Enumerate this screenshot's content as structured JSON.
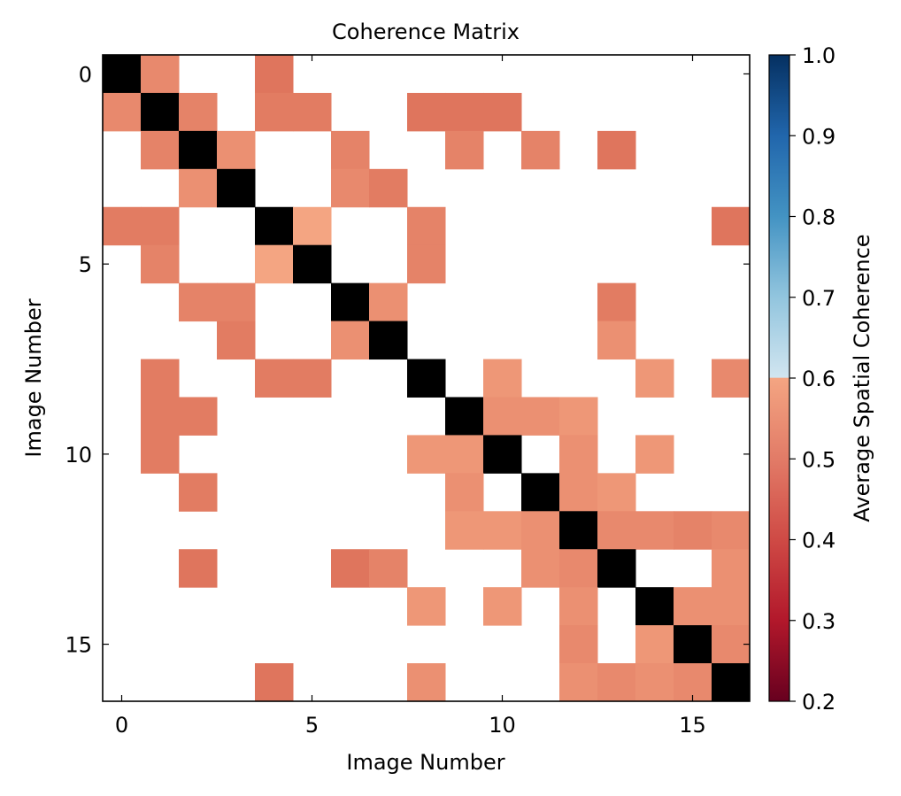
{
  "chart_data": {
    "type": "heatmap",
    "title": "Coherence Matrix",
    "xlabel": "Image Number",
    "ylabel": "Image Number",
    "n": 17,
    "x_ticks": [
      0,
      5,
      10,
      15
    ],
    "y_ticks": [
      0,
      5,
      10,
      15
    ],
    "colorbar": {
      "label": "Average Spatial Coherence",
      "vmin": 0.2,
      "vmax": 1.0,
      "ticks": [
        "0.2",
        "0.3",
        "0.4",
        "0.5",
        "0.6",
        "0.7",
        "0.8",
        "0.9",
        "1.0"
      ],
      "masked_range_note": "values between 0.7 and 1.0 not observed",
      "diagonal_color": "#000000",
      "missing_color": "#ffffff"
    },
    "matrix": [
      [
        1.0,
        0.56,
        null,
        null,
        0.53,
        null,
        null,
        null,
        null,
        null,
        null,
        null,
        null,
        null,
        null,
        null,
        null
      ],
      [
        0.56,
        1.0,
        0.55,
        null,
        0.54,
        0.54,
        null,
        null,
        0.53,
        0.53,
        0.53,
        null,
        null,
        null,
        null,
        null,
        null
      ],
      [
        null,
        0.55,
        1.0,
        0.57,
        null,
        null,
        0.55,
        null,
        null,
        0.55,
        null,
        0.55,
        null,
        0.53,
        null,
        null,
        null
      ],
      [
        null,
        null,
        0.57,
        1.0,
        null,
        null,
        0.56,
        0.54,
        null,
        null,
        null,
        null,
        null,
        null,
        null,
        null,
        null
      ],
      [
        0.54,
        0.54,
        null,
        null,
        1.0,
        0.6,
        null,
        null,
        0.55,
        null,
        null,
        null,
        null,
        null,
        null,
        null,
        0.53
      ],
      [
        null,
        0.55,
        null,
        null,
        0.6,
        1.0,
        null,
        null,
        0.55,
        null,
        null,
        null,
        null,
        null,
        null,
        null,
        null
      ],
      [
        null,
        null,
        0.55,
        0.55,
        null,
        null,
        1.0,
        0.57,
        null,
        null,
        null,
        null,
        null,
        0.54,
        null,
        null,
        null
      ],
      [
        null,
        null,
        null,
        0.54,
        null,
        null,
        0.57,
        1.0,
        null,
        null,
        null,
        null,
        null,
        0.57,
        null,
        null,
        null
      ],
      [
        null,
        0.54,
        null,
        null,
        0.54,
        0.54,
        null,
        null,
        1.0,
        null,
        0.58,
        null,
        null,
        null,
        0.58,
        null,
        0.56
      ],
      [
        null,
        0.54,
        0.54,
        null,
        null,
        null,
        null,
        null,
        null,
        1.0,
        0.57,
        0.57,
        0.58,
        null,
        null,
        null,
        null
      ],
      [
        null,
        0.54,
        null,
        null,
        null,
        null,
        null,
        null,
        0.58,
        0.58,
        1.0,
        null,
        0.57,
        null,
        0.58,
        null,
        null
      ],
      [
        null,
        null,
        0.54,
        null,
        null,
        null,
        null,
        null,
        null,
        0.57,
        null,
        1.0,
        0.57,
        0.58,
        null,
        null,
        null
      ],
      [
        null,
        null,
        null,
        null,
        null,
        null,
        null,
        null,
        null,
        0.58,
        0.58,
        0.57,
        1.0,
        0.56,
        0.56,
        0.55,
        0.56
      ],
      [
        null,
        null,
        0.53,
        null,
        null,
        null,
        0.53,
        0.55,
        null,
        null,
        null,
        0.57,
        0.56,
        1.0,
        null,
        null,
        0.57
      ],
      [
        null,
        null,
        null,
        null,
        null,
        null,
        null,
        null,
        0.58,
        null,
        0.58,
        null,
        0.57,
        null,
        1.0,
        0.57,
        0.57
      ],
      [
        null,
        null,
        null,
        null,
        null,
        null,
        null,
        null,
        null,
        null,
        null,
        null,
        0.56,
        null,
        0.58,
        1.0,
        0.56
      ],
      [
        null,
        null,
        null,
        null,
        0.53,
        null,
        null,
        null,
        0.57,
        null,
        null,
        null,
        0.57,
        0.56,
        0.57,
        0.56,
        1.0
      ]
    ],
    "grid": false
  }
}
